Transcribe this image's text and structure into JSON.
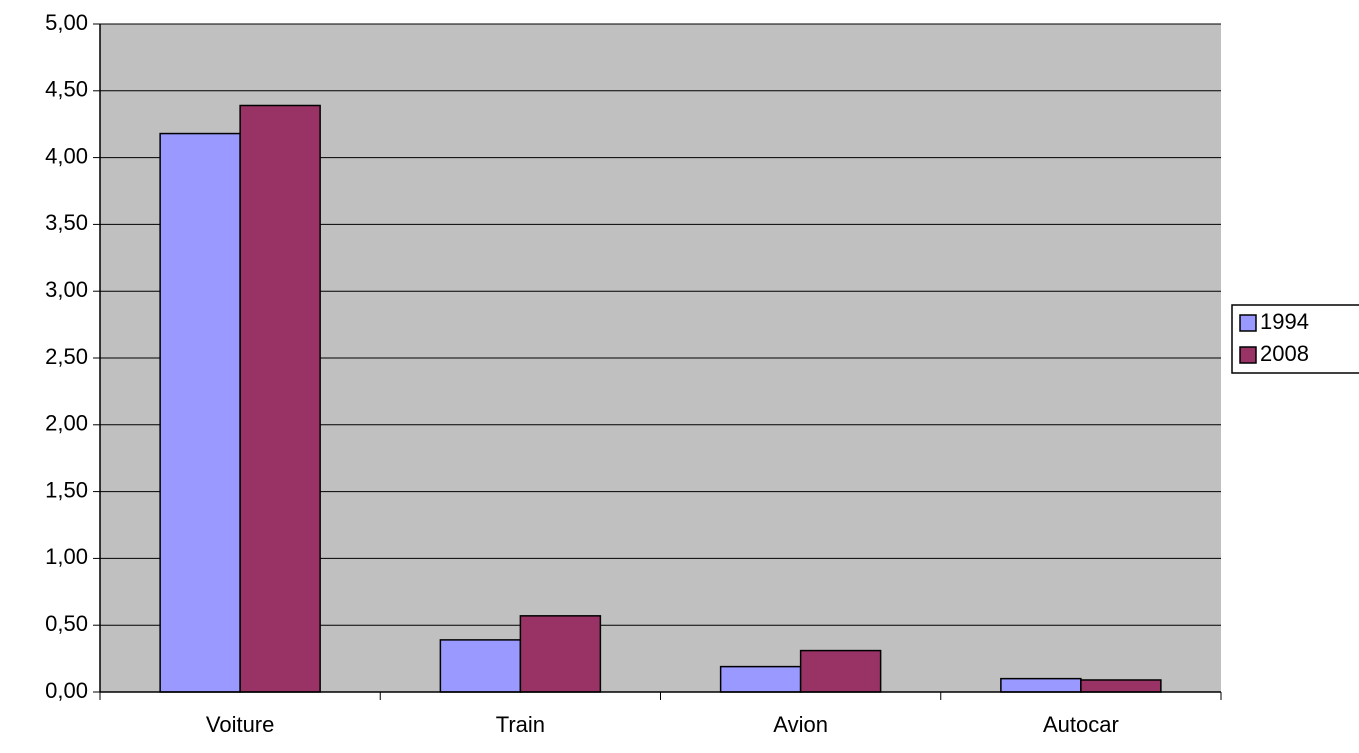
{
  "chart_data": {
    "type": "bar",
    "categories": [
      "Voiture",
      "Train",
      "Avion",
      "Autocar"
    ],
    "series": [
      {
        "name": "1994",
        "color": "#9999ff",
        "values": [
          4.18,
          0.39,
          0.19,
          0.1
        ]
      },
      {
        "name": "2008",
        "color": "#993366",
        "values": [
          4.39,
          0.57,
          0.31,
          0.09
        ]
      }
    ],
    "ylim": [
      0,
      5
    ],
    "yticks": [
      {
        "value": 0,
        "label": "0,00"
      },
      {
        "value": 0.5,
        "label": "0,50"
      },
      {
        "value": 1,
        "label": "1,00"
      },
      {
        "value": 1.5,
        "label": "1,50"
      },
      {
        "value": 2,
        "label": "2,00"
      },
      {
        "value": 2.5,
        "label": "2,50"
      },
      {
        "value": 3,
        "label": "3,00"
      },
      {
        "value": 3.5,
        "label": "3,50"
      },
      {
        "value": 4,
        "label": "4,00"
      },
      {
        "value": 4.5,
        "label": "4,50"
      },
      {
        "value": 5,
        "label": "5,00"
      }
    ],
    "grid": true,
    "legend": "right",
    "plot_background": "#c0c0c0"
  }
}
